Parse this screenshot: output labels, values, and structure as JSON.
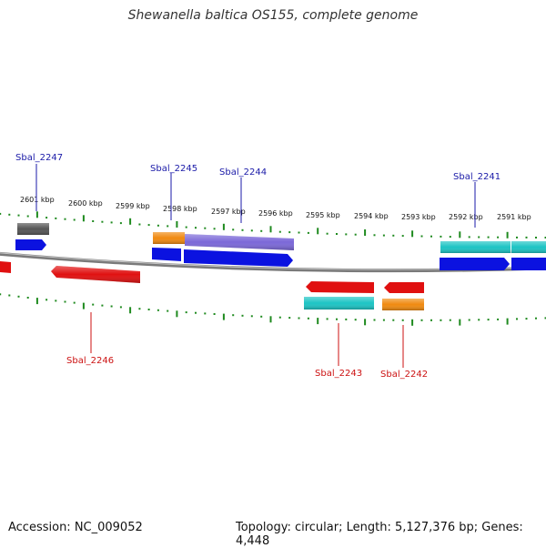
{
  "title": "Shewanella baltica OS155, complete genome",
  "footer": {
    "accession": "Accession: NC_009052",
    "summary": "Topology: circular; Length: 5,127,376 bp; Genes: 4,448"
  },
  "colors": {
    "backbone": "#7a7a7a",
    "tick": "#1f8a1f",
    "label_forward": "#1a1aa8",
    "label_reverse": "#cc1111",
    "gene_blue": "#0b12e0",
    "gene_red": "#e01010",
    "gene_cyan": "#1cc4c4",
    "gene_orange": "#f08a10",
    "gene_purple": "#7b68d8",
    "gene_gray": "#555555"
  },
  "scale_labels": [
    "2601 kbp",
    "2600 kbp",
    "2599 kbp",
    "2598 kbp",
    "2597 kbp",
    "2596 kbp",
    "2595 kbp",
    "2594 kbp",
    "2593 kbp",
    "2592 kbp",
    "2591 kbp"
  ],
  "gene_labels": {
    "forward": [
      "Sbal_2247",
      "Sbal_2245",
      "Sbal_2244",
      "Sbal_2241"
    ],
    "reverse": [
      "Sbal_2246",
      "Sbal_2243",
      "Sbal_2242"
    ]
  }
}
